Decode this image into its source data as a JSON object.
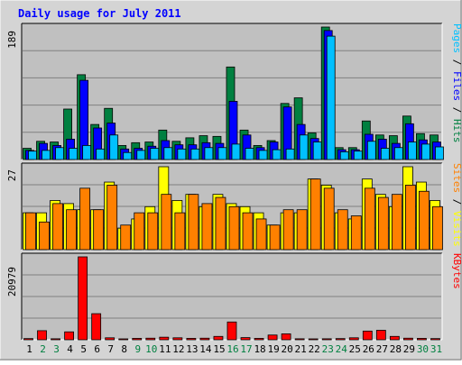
{
  "chart_data": {
    "type": "bar",
    "title": "Daily usage for July 2011",
    "categories": [
      "1",
      "2",
      "3",
      "4",
      "5",
      "6",
      "7",
      "8",
      "9",
      "10",
      "11",
      "12",
      "13",
      "14",
      "15",
      "16",
      "17",
      "18",
      "19",
      "20",
      "21",
      "22",
      "23",
      "24",
      "25",
      "26",
      "27",
      "28",
      "29",
      "30",
      "31"
    ],
    "weekend_days": [
      "2",
      "3",
      "9",
      "10",
      "16",
      "17",
      "23",
      "24",
      "30",
      "31"
    ],
    "colors": {
      "hits": "#008040",
      "files": "#0000ff",
      "pages": "#00c0ff",
      "visits": "#ffff00",
      "sites": "#ff8000",
      "kbytes": "#ff0000",
      "title": "#0000ff",
      "weekend": "#008040",
      "weekday": "#000000",
      "background": "#c0c0c0",
      "frame": "#d4d4d4"
    },
    "panels": [
      {
        "ymax_label": "189",
        "ylim": [
          0,
          189
        ],
        "axis_labels": [
          {
            "text": "Pages",
            "color": "#00c0ff"
          },
          {
            "text": " / ",
            "color": "#000000"
          },
          {
            "text": "Files",
            "color": "#0000ff"
          },
          {
            "text": " / ",
            "color": "#000000"
          },
          {
            "text": "Hits",
            "color": "#008040"
          }
        ],
        "series": [
          {
            "name": "Hits",
            "values": [
              16,
              26,
              25,
              72,
              121,
              50,
              73,
              20,
              24,
              25,
              42,
              26,
              31,
              34,
              33,
              132,
              42,
              20,
              27,
              80,
              88,
              38,
              189,
              17,
              17,
              55,
              35,
              34,
              62,
              37,
              35
            ]
          },
          {
            "name": "Files",
            "values": [
              13,
              23,
              20,
              29,
              113,
              45,
              52,
              15,
              16,
              19,
              27,
              21,
              21,
              24,
              23,
              83,
              35,
              17,
              25,
              75,
              50,
              30,
              184,
              14,
              14,
              36,
              29,
              23,
              51,
              28,
              25
            ]
          },
          {
            "name": "Pages",
            "values": [
              12,
              13,
              17,
              16,
              20,
              15,
              35,
              10,
              13,
              16,
              17,
              15,
              15,
              17,
              17,
              22,
              16,
              13,
              14,
              15,
              35,
              25,
              176,
              11,
              12,
              26,
              16,
              17,
              25,
              22,
              18
            ]
          }
        ]
      },
      {
        "ymax_label": "27",
        "ylim": [
          0,
          27
        ],
        "axis_labels": [
          {
            "text": "Sites",
            "color": "#ff8000"
          },
          {
            "text": " / ",
            "color": "#000000"
          },
          {
            "text": "Visits",
            "color": "#ffff00"
          }
        ],
        "series": [
          {
            "name": "Visits",
            "values": [
              12,
              12,
              16,
              15,
              13,
              13,
              22,
              7,
              10,
              14,
              27,
              16,
              18,
              14,
              18,
              15,
              14,
              12,
              8,
              12,
              12,
              23,
              21,
              12,
              10,
              23,
              18,
              14,
              27,
              22,
              16
            ]
          },
          {
            "name": "Sites",
            "values": [
              12,
              9,
              15,
              13,
              20,
              13,
              21,
              8,
              12,
              12,
              18,
              12,
              18,
              15,
              17,
              14,
              12,
              10,
              8,
              13,
              13,
              23,
              20,
              13,
              11,
              20,
              17,
              18,
              21,
              19,
              14
            ]
          }
        ]
      },
      {
        "ymax_label": "20979",
        "ylim": [
          0,
          20979
        ],
        "axis_labels": [
          {
            "text": "KBytes",
            "color": "#ff0000"
          }
        ],
        "series": [
          {
            "name": "KBytes",
            "values": [
              300,
              2300,
              250,
              2000,
              20979,
              6600,
              500,
              200,
              350,
              400,
              650,
              500,
              350,
              400,
              850,
              4500,
              550,
              350,
              1200,
              1500,
              250,
              200,
              250,
              300,
              500,
              2200,
              2400,
              850,
              400,
              350,
              300
            ]
          }
        ]
      }
    ]
  }
}
